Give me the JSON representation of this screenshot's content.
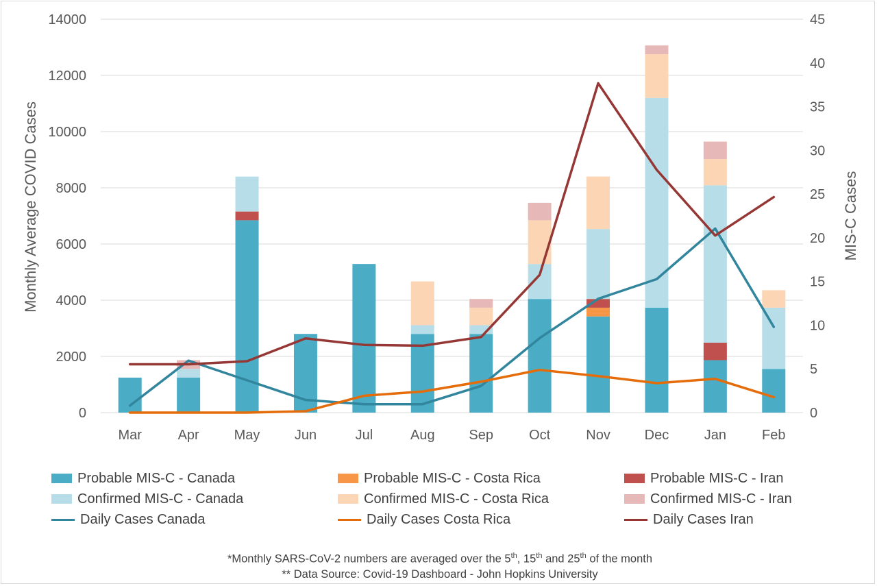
{
  "chart_data": {
    "type": "bar",
    "stacked": true,
    "categories": [
      "Mar",
      "Apr",
      "May",
      "Jun",
      "Jul",
      "Aug",
      "Sep",
      "Oct",
      "Nov",
      "Dec",
      "Jan",
      "Feb"
    ],
    "ylabel": "Monthly Average COVID Cases",
    "y2label": "MIS-C Cases",
    "ylim": [
      0,
      14000
    ],
    "y2lim": [
      0,
      45
    ],
    "yticks": [
      0,
      2000,
      4000,
      6000,
      8000,
      10000,
      12000,
      14000
    ],
    "y2ticks": [
      0,
      5,
      10,
      15,
      20,
      25,
      30,
      35,
      40,
      45
    ],
    "grid": true,
    "legend_position": "bottom",
    "bar_series": [
      {
        "name": "Probable MIS-C - Canada",
        "color": "#4bacc6",
        "values": [
          4,
          4,
          22,
          9,
          17,
          9,
          9,
          13,
          11,
          12,
          6,
          5
        ]
      },
      {
        "name": "Probable MIS-C - Costa Rica",
        "color": "#f79646",
        "values": [
          0,
          0,
          0,
          0,
          0,
          0,
          0,
          0,
          1,
          0,
          0,
          0
        ]
      },
      {
        "name": "Probable MIS-C - Iran",
        "color": "#c0504d",
        "values": [
          0,
          0,
          1,
          0,
          0,
          0,
          0,
          0,
          1,
          0,
          2,
          0
        ]
      },
      {
        "name": "Confirmed MIS-C  - Canada",
        "color": "#b7dee8",
        "values": [
          0,
          1,
          4,
          0,
          0,
          1,
          1,
          4,
          8,
          24,
          18,
          7
        ]
      },
      {
        "name": "Confirmed MIS-C - Costa Rica",
        "color": "#fcd5b5",
        "values": [
          0,
          0,
          0,
          0,
          0,
          5,
          2,
          5,
          6,
          5,
          3,
          2
        ]
      },
      {
        "name": "Confirmed MIS-C - Iran",
        "color": "#e6b9b8",
        "values": [
          0,
          1,
          0,
          0,
          0,
          0,
          1,
          2,
          0,
          1,
          2,
          0
        ]
      }
    ],
    "line_series": [
      {
        "name": "Daily Cases Canada",
        "color": "#31859c",
        "axis": "left",
        "values": [
          250,
          1850,
          1150,
          450,
          300,
          300,
          950,
          2650,
          4050,
          4750,
          6550,
          3050
        ]
      },
      {
        "name": "Daily Cases Costa Rica",
        "color": "#e46c0a",
        "axis": "left",
        "values": [
          0,
          0,
          0,
          50,
          600,
          750,
          1100,
          1520,
          1300,
          1050,
          1200,
          550
        ]
      },
      {
        "name": "Daily Cases Iran",
        "color": "#953735",
        "axis": "left",
        "values": [
          1720,
          1720,
          1830,
          2640,
          2410,
          2380,
          2690,
          4900,
          11720,
          8640,
          6300,
          7670
        ]
      }
    ]
  },
  "legend_labels": {
    "probable_canada": "Probable MIS-C - Canada",
    "probable_costa_rica": "Probable MIS-C - Costa Rica",
    "probable_iran": "Probable MIS-C - Iran",
    "confirmed_canada": "Confirmed MIS-C  - Canada",
    "confirmed_costa_rica": "Confirmed MIS-C - Costa Rica",
    "confirmed_iran": "Confirmed MIS-C - Iran",
    "daily_canada": "Daily Cases Canada",
    "daily_costa_rica": "Daily Cases Costa Rica",
    "daily_iran": "Daily Cases Iran"
  },
  "footnotes": {
    "line1_a": "*Monthly  SARS-CoV-2 numbers are averaged over the 5",
    "line1_sup1": "th",
    "line1_b": ", 15",
    "line1_sup2": "th",
    "line1_c": " and 25",
    "line1_sup3": "th",
    "line1_d": " of the month",
    "line2": "** Data Source: Covid-19 Dashboard - John Hopkins University"
  }
}
